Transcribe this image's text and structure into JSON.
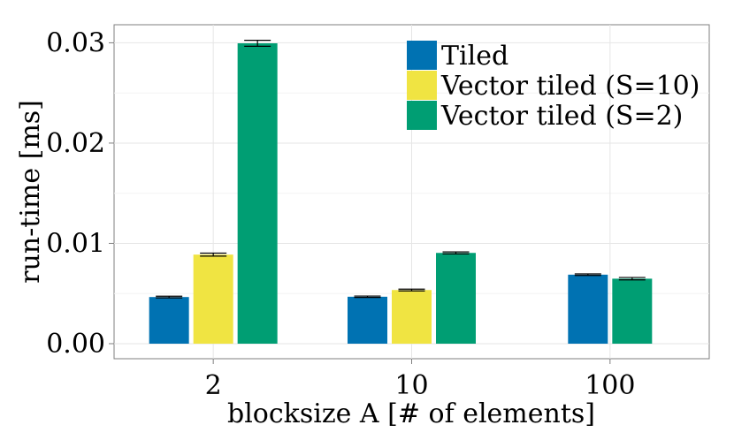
{
  "chart_data": {
    "type": "bar",
    "categories": [
      "2",
      "10",
      "100"
    ],
    "xlabel": "blocksize A [# of elements]",
    "ylabel": "run-time [ms]",
    "ylim": [
      -0.0015,
      0.0318
    ],
    "yticks": [
      "0.00",
      "0.01",
      "0.02",
      "0.03"
    ],
    "grid": true,
    "legend": "top-right",
    "series": [
      {
        "name": "Tiled",
        "color": "#0072B2",
        "values": [
          0.00465,
          0.00468,
          0.00688
        ],
        "errors": [
          8e-05,
          7e-05,
          8e-05
        ]
      },
      {
        "name": "Vector tiled (S=10)",
        "color": "#F0E442",
        "values": [
          0.00888,
          0.00535,
          null
        ],
        "errors": [
          0.00015,
          9e-05,
          null
        ]
      },
      {
        "name": "Vector tiled (S=2)",
        "color": "#009E73",
        "values": [
          0.02995,
          0.00905,
          0.00648
        ],
        "errors": [
          0.0003,
          0.0001,
          0.00012
        ]
      }
    ]
  }
}
